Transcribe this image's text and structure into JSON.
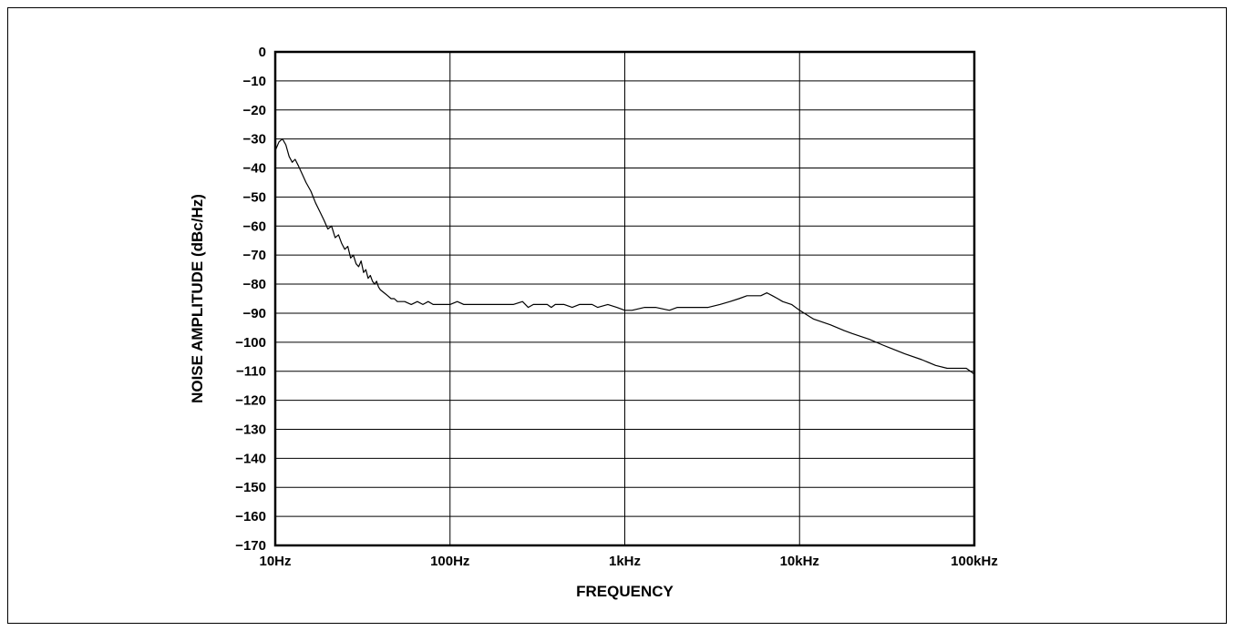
{
  "chart_data": {
    "type": "line",
    "title": "",
    "xlabel": "FREQUENCY",
    "ylabel": "NOISE AMPLITUDE (dBc/Hz)",
    "xscale": "log",
    "xlim": [
      10,
      100000
    ],
    "ylim": [
      -170,
      0
    ],
    "grid": true,
    "legend": "none",
    "x_tick_values": [
      10,
      100,
      1000,
      10000,
      100000
    ],
    "x_tick_labels": [
      "10Hz",
      "100Hz",
      "1kHz",
      "10kHz",
      "100kHz"
    ],
    "y_tick_values": [
      0,
      -10,
      -20,
      -30,
      -40,
      -50,
      -60,
      -70,
      -80,
      -90,
      -100,
      -110,
      -120,
      -130,
      -140,
      -150,
      -160,
      -170
    ],
    "y_tick_labels": [
      "0",
      "−10",
      "−20",
      "−30",
      "−40",
      "−50",
      "−60",
      "−70",
      "−80",
      "−90",
      "−100",
      "−110",
      "−120",
      "−130",
      "−140",
      "−150",
      "−160",
      "−170"
    ],
    "series": [
      {
        "color": "#000000",
        "x": [
          10,
          10.5,
          11,
          11.5,
          12,
          12.5,
          13,
          13.5,
          14,
          15,
          16,
          17,
          18,
          19,
          20,
          21,
          22,
          23,
          24,
          25,
          26,
          27,
          28,
          29,
          30,
          31,
          32,
          33,
          34,
          35,
          36,
          37,
          38,
          39,
          40,
          42,
          44,
          46,
          48,
          50,
          55,
          60,
          65,
          70,
          75,
          80,
          90,
          100,
          110,
          120,
          130,
          140,
          150,
          170,
          200,
          230,
          260,
          280,
          300,
          330,
          360,
          380,
          400,
          450,
          500,
          550,
          600,
          650,
          700,
          800,
          900,
          1000,
          1100,
          1300,
          1500,
          1800,
          2000,
          2500,
          3000,
          3500,
          4000,
          4500,
          5000,
          5500,
          6000,
          6500,
          7000,
          7500,
          8000,
          9000,
          10000,
          12000,
          15000,
          18000,
          20000,
          25000,
          30000,
          40000,
          50000,
          60000,
          70000,
          80000,
          90000,
          100000
        ],
        "y": [
          -34,
          -31,
          -30,
          -32,
          -36,
          -38,
          -37,
          -39,
          -41,
          -45,
          -48,
          -52,
          -55,
          -58,
          -61,
          -60,
          -64,
          -63,
          -66,
          -68,
          -67,
          -71,
          -70,
          -73,
          -74,
          -72,
          -76,
          -75,
          -78,
          -77,
          -79,
          -80,
          -79,
          -81,
          -82,
          -83,
          -84,
          -85,
          -85,
          -86,
          -86,
          -87,
          -86,
          -87,
          -86,
          -87,
          -87,
          -87,
          -86,
          -87,
          -87,
          -87,
          -87,
          -87,
          -87,
          -87,
          -86,
          -88,
          -87,
          -87,
          -87,
          -88,
          -87,
          -87,
          -88,
          -87,
          -87,
          -87,
          -88,
          -87,
          -88,
          -89,
          -89,
          -88,
          -88,
          -89,
          -88,
          -88,
          -88,
          -87,
          -86,
          -85,
          -84,
          -84,
          -84,
          -83,
          -84,
          -85,
          -86,
          -87,
          -89,
          -92,
          -94,
          -96,
          -97,
          -99,
          -101,
          -104,
          -106,
          -108,
          -109,
          -109,
          -109,
          -111
        ]
      }
    ]
  }
}
